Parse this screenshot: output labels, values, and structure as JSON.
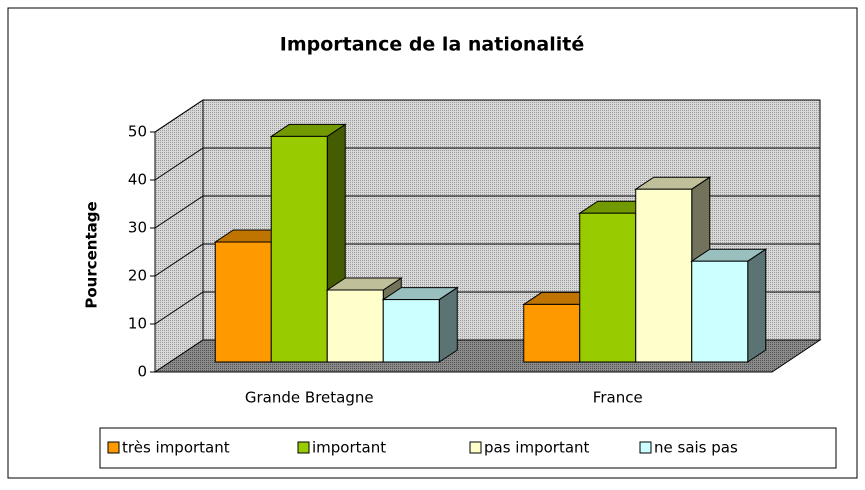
{
  "chart_data": {
    "type": "bar",
    "title": "Importance de la nationalité",
    "y_label": "Pourcentage",
    "categories": [
      "Grande Bretagne",
      "France"
    ],
    "series": [
      {
        "name": "très important",
        "color": "#ff9900",
        "values": [
          25,
          12
        ]
      },
      {
        "name": "important",
        "color": "#99cc00",
        "values": [
          47,
          31
        ]
      },
      {
        "name": "pas important",
        "color": "#ffffcc",
        "values": [
          15,
          36
        ]
      },
      {
        "name": "ne sais pas",
        "color": "#ccffff",
        "values": [
          13,
          21
        ]
      }
    ],
    "ylim": [
      0,
      50
    ],
    "yticks": [
      0,
      10,
      20,
      30,
      40,
      50
    ],
    "grid": true,
    "legend": "bottom"
  }
}
